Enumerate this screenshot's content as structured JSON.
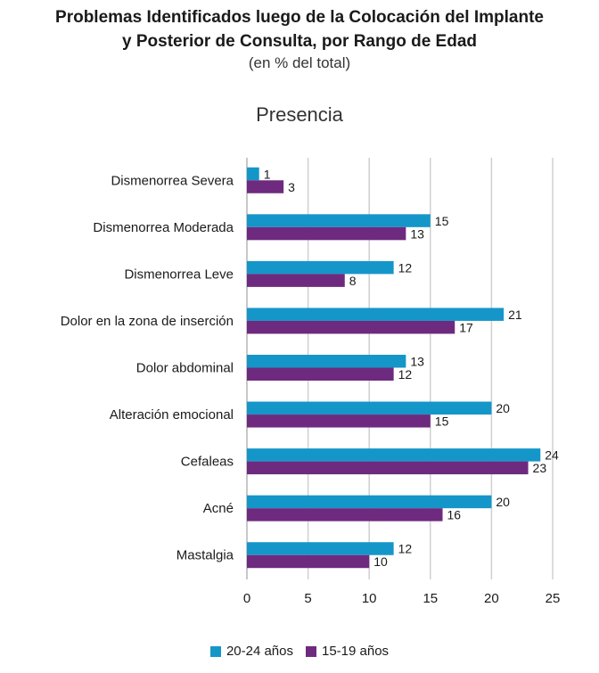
{
  "chart_data": {
    "type": "bar",
    "orientation": "horizontal",
    "title_line1": "Problemas Identificados luego de la Colocación del Implante",
    "title_line2": "y Posterior de Consulta, por Rango de Edad",
    "subtitle": "(en % del total)",
    "chart_title": "Presencia",
    "categories": [
      "Dismenorrea Severa",
      "Dismenorrea Moderada",
      "Dismenorrea Leve",
      "Dolor en la zona de inserción",
      "Dolor abdominal",
      "Alteración emocional",
      "Cefaleas",
      "Acné",
      "Mastalgia"
    ],
    "series": [
      {
        "name": "20-24 años",
        "color": "#1596c9",
        "values": [
          1,
          15,
          12,
          21,
          13,
          20,
          24,
          20,
          12
        ]
      },
      {
        "name": "15-19 años",
        "color": "#6e2a7e",
        "values": [
          3,
          13,
          8,
          17,
          12,
          15,
          23,
          16,
          10
        ]
      }
    ],
    "xlim": [
      0,
      25
    ],
    "xticks": [
      0,
      5,
      10,
      15,
      20,
      25
    ],
    "grid": true,
    "legend_position": "bottom"
  }
}
